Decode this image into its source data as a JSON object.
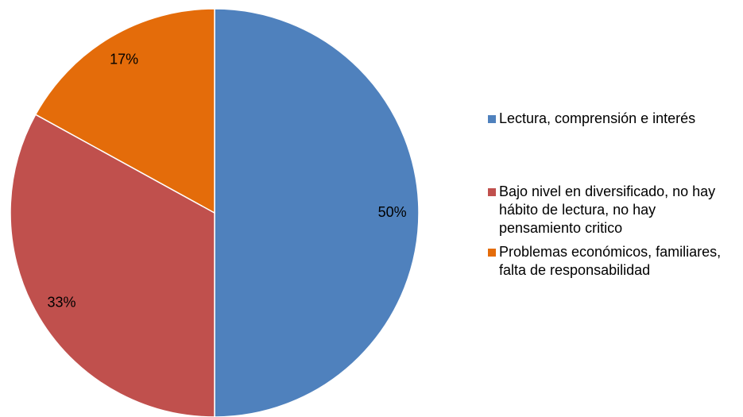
{
  "chart_data": {
    "type": "pie",
    "categories": [
      "Lectura, comprensión e interés",
      "Bajo nivel en diversificado, no hay  hábito de lectura, no hay pensamiento critico",
      "Problemas económicos, familiares, falta de responsabilidad"
    ],
    "values": [
      50,
      33,
      17
    ],
    "value_labels": [
      "50%",
      "33%",
      "17%"
    ],
    "colors": [
      "#4f81bd",
      "#c0504d",
      "#e46c0a"
    ],
    "legend": "right"
  }
}
